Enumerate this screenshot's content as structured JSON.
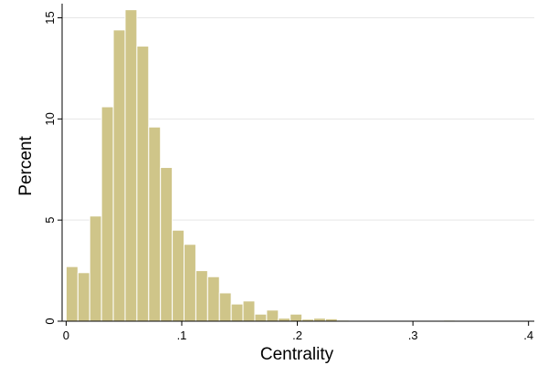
{
  "chart_data": {
    "type": "bar",
    "subtype": "histogram",
    "xlabel": "Centrality",
    "ylabel": "Percent",
    "xlim": [
      -0.0035,
      0.405
    ],
    "ylim": [
      0,
      15.7
    ],
    "grid": true,
    "bar_color": "#cfc589",
    "x_ticks": [
      {
        "value": 0,
        "label": "0"
      },
      {
        "value": 0.1,
        "label": ".1"
      },
      {
        "value": 0.2,
        "label": ".2"
      },
      {
        "value": 0.3,
        "label": ".3"
      },
      {
        "value": 0.4,
        "label": ".4"
      }
    ],
    "y_ticks": [
      {
        "value": 0,
        "label": "0"
      },
      {
        "value": 5,
        "label": "5"
      },
      {
        "value": 10,
        "label": "10"
      },
      {
        "value": 15,
        "label": "15"
      }
    ],
    "bin_width": 0.0102,
    "bin_start": 0,
    "values": [
      2.7,
      2.4,
      5.2,
      10.6,
      14.4,
      15.4,
      13.6,
      9.6,
      7.6,
      4.5,
      3.8,
      2.5,
      2.2,
      1.4,
      0.85,
      1.0,
      0.35,
      0.55,
      0.15,
      0.35,
      0.1,
      0.15,
      0.12,
      0.05,
      0.04,
      0.04,
      0.03,
      0.02,
      0.02,
      0.02,
      0.01,
      0.01,
      0.05,
      0.01,
      0.01,
      0.01,
      0.01,
      0.01
    ]
  }
}
